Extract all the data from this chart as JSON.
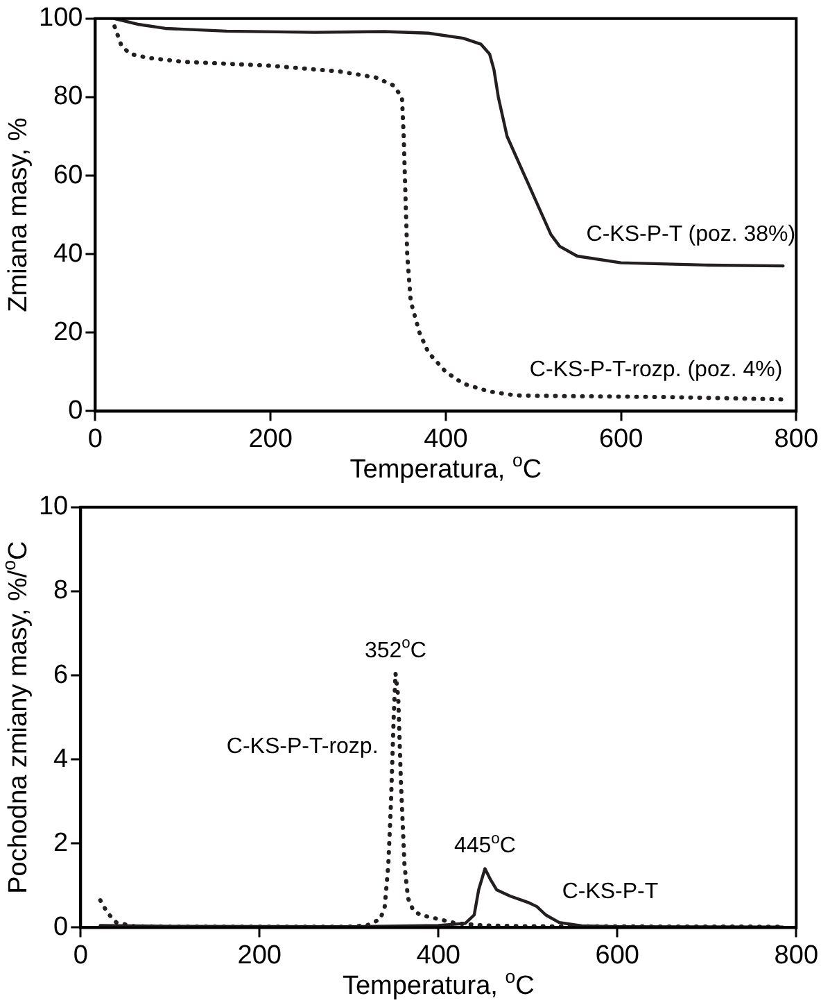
{
  "chart_data": [
    {
      "type": "line",
      "xlabel": "Temperatura, $^{o}$C",
      "ylabel": "Zmiana masy, %",
      "xlim": [
        0,
        800
      ],
      "xticks": [
        0,
        200,
        400,
        600,
        800
      ],
      "ylim": [
        0,
        100
      ],
      "yticks": [
        0,
        20,
        40,
        60,
        80,
        100
      ],
      "grid": false,
      "legend": false,
      "marker": "none",
      "series": [
        {
          "name": "C-KS-P-T (poz. 38%)",
          "color": "#231f20",
          "line_style": "solid",
          "x": [
            22,
            50,
            80,
            150,
            250,
            330,
            380,
            420,
            440,
            450,
            455,
            460,
            470,
            490,
            510,
            520,
            530,
            550,
            600,
            700,
            785
          ],
          "values": [
            100,
            98.5,
            97.5,
            96.8,
            96.5,
            96.7,
            96.3,
            95,
            93.5,
            91,
            87,
            80,
            70,
            60,
            50,
            45,
            42,
            39.5,
            37.8,
            37.2,
            37
          ]
        },
        {
          "name": "C-KS-P-T-rozp. (poz. 4%)",
          "color": "#231f20",
          "line_style": "dotted",
          "x": [
            22,
            30,
            40,
            60,
            100,
            200,
            280,
            320,
            340,
            350,
            352,
            354,
            356,
            360,
            370,
            380,
            400,
            420,
            450,
            480,
            550,
            650,
            785
          ],
          "values": [
            98,
            93,
            91,
            90,
            89,
            88,
            86.5,
            85,
            83,
            80,
            70,
            55,
            40,
            28,
            20,
            15,
            10,
            7,
            5,
            4,
            3.8,
            3.6,
            3
          ]
        }
      ],
      "tick_labels": "xy"
    },
    {
      "type": "line",
      "xlabel": "Temperatura, $^{o}$C",
      "ylabel": "Pochodna zmiany masy, %/$^{o}$C",
      "xlim": [
        0,
        800
      ],
      "xticks": [
        0,
        200,
        400,
        600,
        800
      ],
      "ylim": [
        0,
        10
      ],
      "yticks": [
        0,
        2,
        4,
        6,
        8,
        10
      ],
      "grid": false,
      "legend": false,
      "marker": "none",
      "series": [
        {
          "name": "C-KS-P-T",
          "color": "#231f20",
          "line_style": "solid",
          "x": [
            22,
            100,
            300,
            400,
            430,
            440,
            445,
            452,
            458,
            465,
            480,
            500,
            510,
            520,
            535,
            560,
            600,
            785
          ],
          "values": [
            0.05,
            0.03,
            0.02,
            0.05,
            0.1,
            0.3,
            0.9,
            1.4,
            1.15,
            0.9,
            0.75,
            0.6,
            0.5,
            0.3,
            0.12,
            0.04,
            0.02,
            0.01
          ]
        },
        {
          "name": "C-KS-P-T-rozp.",
          "color": "#231f20",
          "line_style": "dotted",
          "x": [
            22,
            30,
            40,
            60,
            100,
            300,
            320,
            335,
            340,
            344,
            347,
            350,
            352,
            355,
            358,
            362,
            366,
            372,
            380,
            400,
            420,
            450,
            500,
            785
          ],
          "values": [
            0.65,
            0.35,
            0.12,
            0.03,
            0.02,
            0.02,
            0.05,
            0.2,
            0.5,
            1.5,
            3,
            5,
            6.05,
            5.5,
            3.5,
            1.5,
            0.7,
            0.4,
            0.3,
            0.2,
            0.1,
            0.05,
            0.03,
            0.02
          ]
        }
      ],
      "annotations": [
        {
          "text": "352$^{o}$C",
          "x": 352,
          "y": 6.05
        },
        {
          "text": "445$^{o}$C",
          "x": 452,
          "y": 1.4
        }
      ]
    }
  ]
}
